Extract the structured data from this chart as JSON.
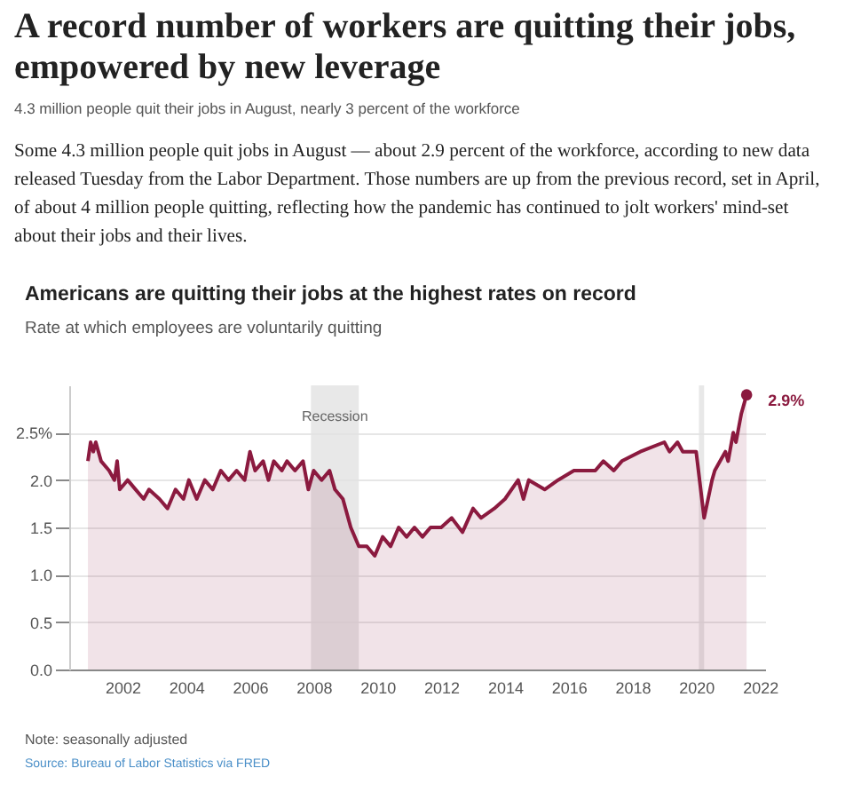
{
  "chart_data": {
    "type": "area",
    "title": "A record number of workers are quitting their jobs, empowered by new leverage",
    "subtitle": "4.3 million people quit their jobs in August, nearly 3 percent of the workforce",
    "annotations": [
      "Some 4.3 million people quit jobs in August — about 2.9 percent of the workforce, according to new data released Tuesday from the Labor Department. Those numbers are up from the previous record, set in April, of about 4 million people quitting, reflecting how the pandemic has continued to jolt workers' mind-set about their jobs and their lives.",
      "Americans are quitting their jobs at the highest rates on record",
      "Rate at which employees are voluntarily quitting",
      "Note: seasonally adjusted",
      "Source: Bureau of Labor Statistics via FRED",
      {
        "text": "2.9%",
        "x": "2021-08",
        "y": 2.9
      }
    ],
    "x": [
      "2000-12",
      "2001-01",
      "2001-02",
      "2001-03",
      "2001-05",
      "2001-08",
      "2001-10",
      "2001-11",
      "2001-12",
      "2002-03",
      "2002-06",
      "2002-09",
      "2002-11",
      "2003-03",
      "2003-06",
      "2003-09",
      "2003-12",
      "2004-02",
      "2004-05",
      "2004-08",
      "2004-11",
      "2005-02",
      "2005-05",
      "2005-08",
      "2005-11",
      "2006-01",
      "2006-03",
      "2006-06",
      "2006-08",
      "2006-10",
      "2007-01",
      "2007-03",
      "2007-06",
      "2007-09",
      "2007-11",
      "2008-01",
      "2008-04",
      "2008-07",
      "2008-09",
      "2008-12",
      "2009-03",
      "2009-06",
      "2009-09",
      "2009-12",
      "2010-03",
      "2010-06",
      "2010-09",
      "2010-12",
      "2011-03",
      "2011-06",
      "2011-09",
      "2012-01",
      "2012-05",
      "2012-09",
      "2013-01",
      "2013-04",
      "2013-09",
      "2014-01",
      "2014-06",
      "2014-08",
      "2014-10",
      "2015-04",
      "2015-09",
      "2016-03",
      "2016-11",
      "2017-02",
      "2017-06",
      "2017-09",
      "2018-04",
      "2019-01",
      "2019-03",
      "2019-06",
      "2019-08",
      "2020-01",
      "2020-04",
      "2020-07",
      "2020-08",
      "2020-10",
      "2020-12",
      "2021-01",
      "2021-03",
      "2021-04",
      "2021-06",
      "2021-08"
    ],
    "series": [
      {
        "color": "#8b1a3f",
        "values": [
          2.2,
          2.4,
          2.3,
          2.4,
          2.2,
          2.1,
          2.0,
          2.2,
          1.9,
          2.0,
          1.9,
          1.8,
          1.9,
          1.8,
          1.7,
          1.9,
          1.8,
          2.0,
          1.8,
          2.0,
          1.9,
          2.1,
          2.0,
          2.1,
          2.0,
          2.3,
          2.1,
          2.2,
          2.0,
          2.2,
          2.1,
          2.2,
          2.1,
          2.2,
          1.9,
          2.1,
          2.0,
          2.1,
          1.9,
          1.8,
          1.5,
          1.3,
          1.3,
          1.2,
          1.4,
          1.3,
          1.5,
          1.4,
          1.5,
          1.4,
          1.5,
          1.5,
          1.6,
          1.45,
          1.7,
          1.6,
          1.7,
          1.8,
          2.0,
          1.8,
          2.0,
          1.9,
          2.0,
          2.1,
          2.1,
          2.2,
          2.1,
          2.2,
          2.3,
          2.4,
          2.3,
          2.4,
          2.3,
          2.3,
          1.6,
          2.0,
          2.1,
          2.2,
          2.3,
          2.2,
          2.5,
          2.4,
          2.7,
          2.9
        ]
      }
    ],
    "xlim": [
      "2000-05",
      "2022-03"
    ],
    "xticks": [
      {
        "value": "2002",
        "label": "2002"
      },
      {
        "value": "2004",
        "label": "2004"
      },
      {
        "value": "2006",
        "label": "2006"
      },
      {
        "value": "2008",
        "label": "2008"
      },
      {
        "value": "2010",
        "label": "2010"
      },
      {
        "value": "2012",
        "label": "2012"
      },
      {
        "value": "2014",
        "label": "2014"
      },
      {
        "value": "2016",
        "label": "2016"
      },
      {
        "value": "2018",
        "label": "2018"
      },
      {
        "value": "2020",
        "label": "2020"
      },
      {
        "value": "2022",
        "label": "2022"
      }
    ],
    "ylim": [
      0,
      3
    ],
    "yticks": [
      {
        "value": 0,
        "label": "0.0"
      },
      {
        "value": 0.5,
        "label": "0.5"
      },
      {
        "value": 1,
        "label": "1.0"
      },
      {
        "value": 1.5,
        "label": "1.5"
      },
      {
        "value": 2,
        "label": "2.0"
      },
      {
        "value": 2.5,
        "label": "2.5%"
      }
    ],
    "grid": "y",
    "bands": [
      {
        "axis": "x",
        "from": "2007-12",
        "to": "2009-06",
        "label": "Recession",
        "color": "#e2e2e2"
      },
      {
        "axis": "x",
        "from": "2020-02",
        "to": "2020-04",
        "color": "#e2e2e2"
      }
    ]
  }
}
